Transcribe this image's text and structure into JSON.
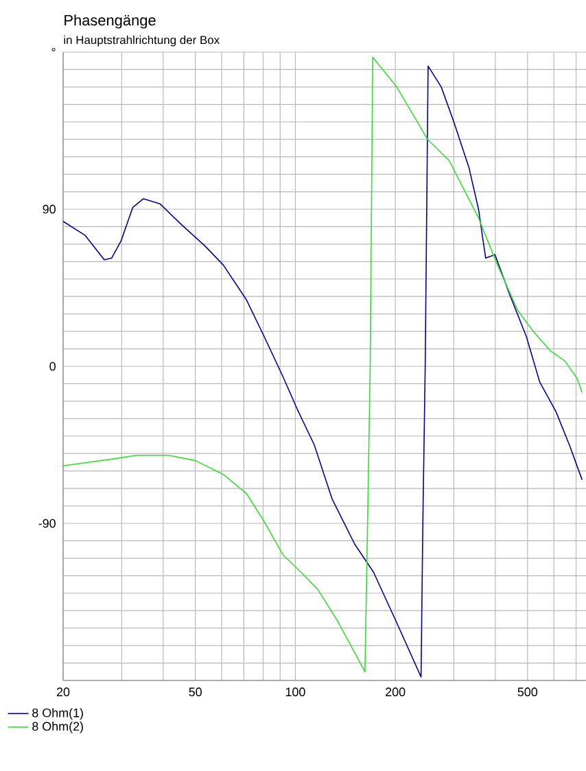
{
  "chart_data": {
    "type": "line",
    "title": "Phasengänge",
    "subtitle": "in Hauptstrahlrichtung der Box",
    "log": "x",
    "grid": true,
    "legend": "bottom left",
    "marker": "none",
    "line_style": "solid",
    "xlim": [
      20,
      750
    ],
    "ylim": [
      -180,
      180
    ],
    "xticks": [
      20,
      {
        "value": 30,
        "label": null
      },
      {
        "value": 40,
        "label": null
      },
      50,
      {
        "value": 60,
        "label": null
      },
      {
        "value": 70,
        "label": null
      },
      {
        "value": 80,
        "label": null
      },
      {
        "value": 90,
        "label": null
      },
      100,
      200,
      {
        "value": 300,
        "label": null
      },
      {
        "value": 400,
        "label": null
      },
      500,
      {
        "value": 600,
        "label": null
      },
      {
        "value": 700,
        "label": null
      }
    ],
    "yticks": [
      {
        "value": -180,
        "label": null
      },
      {
        "value": -170,
        "label": null
      },
      {
        "value": -160,
        "label": null
      },
      {
        "value": -150,
        "label": null
      },
      {
        "value": -140,
        "label": null
      },
      {
        "value": -130,
        "label": null
      },
      {
        "value": -120,
        "label": null
      },
      {
        "value": -110,
        "label": null
      },
      {
        "value": -100,
        "label": null
      },
      -90,
      {
        "value": -80,
        "label": null
      },
      {
        "value": -70,
        "label": null
      },
      {
        "value": -60,
        "label": null
      },
      {
        "value": -50,
        "label": null
      },
      {
        "value": -40,
        "label": null
      },
      {
        "value": -30,
        "label": null
      },
      {
        "value": -20,
        "label": null
      },
      {
        "value": -10,
        "label": null
      },
      0,
      {
        "value": 10,
        "label": null
      },
      {
        "value": 20,
        "label": null
      },
      {
        "value": 30,
        "label": null
      },
      {
        "value": 40,
        "label": null
      },
      {
        "value": 50,
        "label": null
      },
      {
        "value": 60,
        "label": null
      },
      {
        "value": 70,
        "label": null
      },
      90,
      {
        "value": 80,
        "label": null
      },
      {
        "value": 100,
        "label": null
      },
      {
        "value": 110,
        "label": null
      },
      {
        "value": 120,
        "label": null
      },
      {
        "value": 130,
        "label": null
      },
      {
        "value": 140,
        "label": null
      },
      {
        "value": 150,
        "label": null
      },
      {
        "value": 160,
        "label": null
      },
      {
        "value": 170,
        "label": null
      },
      {
        "value": 180,
        "label": "°"
      }
    ],
    "series": [
      {
        "name": "8 Ohm(1)",
        "color": "#000099",
        "x": [
          20,
          23.3,
          26.6,
          28,
          29.9,
          32.4,
          34.9,
          39.2,
          45.5,
          53.4,
          60.7,
          71.3,
          80.6,
          91.8,
          101,
          114,
          129,
          151,
          172,
          202,
          239,
          242,
          246,
          251,
          275,
          300,
          333,
          356,
          374,
          399,
          442,
          496,
          544,
          609,
          668,
          730
        ],
        "values": [
          83,
          75,
          61,
          62,
          72,
          91,
          96,
          93,
          81,
          69,
          58,
          38,
          17,
          -6,
          -24,
          -45,
          -76,
          -102,
          -118,
          -147,
          -178,
          -90,
          0,
          172,
          160,
          140,
          114,
          90,
          62,
          64,
          41,
          17,
          -9,
          -26,
          -45,
          -65
        ]
      },
      {
        "name": "8 Ohm(2)",
        "color": "#33dd33",
        "x": [
          20,
          28.4,
          33.3,
          41.5,
          50,
          60.7,
          71.3,
          80.6,
          91.8,
          104,
          117,
          134,
          162,
          165,
          168,
          171,
          202,
          250,
          290,
          356,
          404,
          467,
          520,
          585,
          648,
          705,
          730
        ],
        "values": [
          -57,
          -53,
          -51,
          -51,
          -54,
          -62,
          -73,
          -89,
          -108,
          -118,
          -128,
          -146,
          -175,
          -90,
          0,
          177,
          160,
          130,
          118,
          85,
          59,
          32,
          20,
          9,
          3,
          -7,
          -15
        ]
      }
    ]
  }
}
